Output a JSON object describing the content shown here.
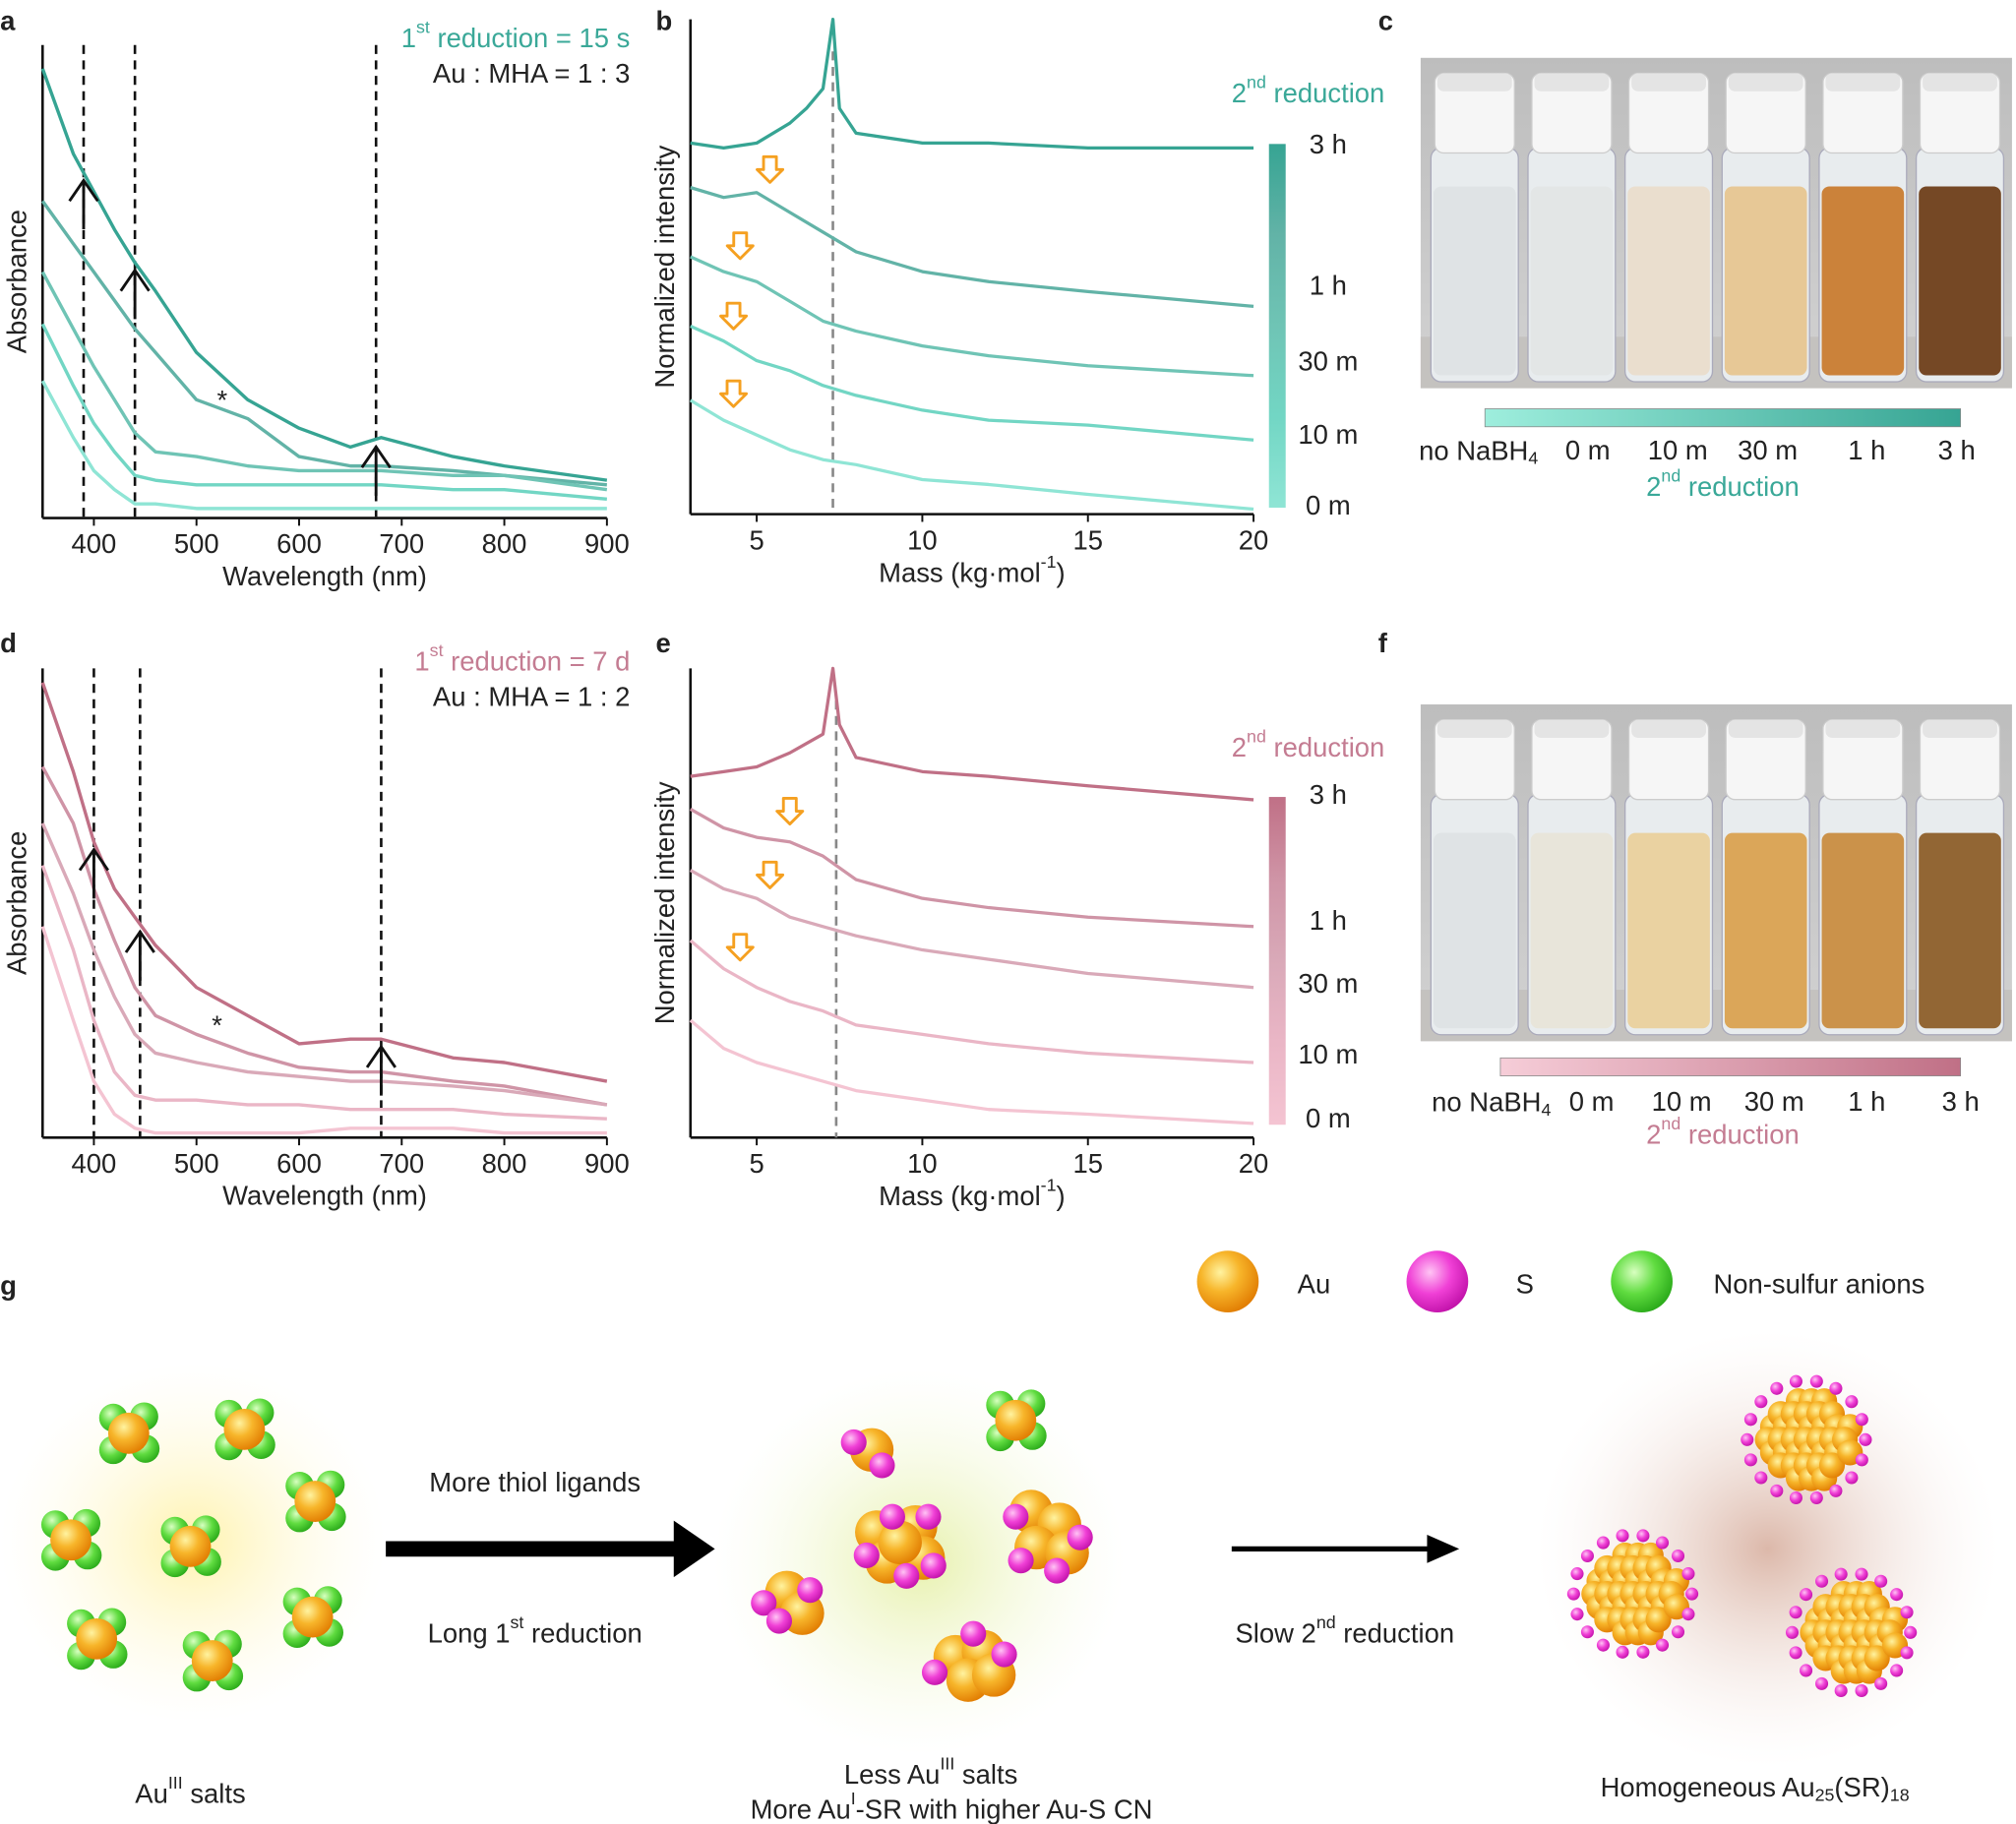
{
  "chart_data": [
    {
      "type": "line",
      "panel": "a",
      "y_label": "Absorbance",
      "x_label": "Wavelength (nm)",
      "xlim": [
        350,
        900
      ],
      "ylim": [
        0,
        100
      ],
      "xticks": [
        400,
        500,
        600,
        700,
        800,
        900
      ],
      "x": [
        350,
        380,
        400,
        420,
        440,
        460,
        500,
        550,
        600,
        650,
        680,
        750,
        800,
        900
      ],
      "series": [
        {
          "color": "#36a493",
          "values": [
            95,
            77,
            69,
            61,
            54,
            48,
            35,
            25,
            19,
            15,
            17,
            13,
            11,
            8
          ]
        },
        {
          "color": "#62b3a7",
          "values": [
            67,
            58,
            52,
            46,
            40,
            35,
            25,
            21,
            13,
            11,
            11,
            10,
            9,
            7
          ]
        },
        {
          "color": "#6fc4b5",
          "values": [
            52,
            40,
            32,
            25,
            18,
            14,
            13,
            11,
            10,
            10,
            10,
            9,
            9,
            6
          ]
        },
        {
          "color": "#72d6c4",
          "values": [
            41,
            28,
            20,
            14,
            9,
            8,
            7,
            7,
            7,
            7,
            7,
            6,
            6,
            4
          ]
        },
        {
          "color": "#8fe5d5",
          "values": [
            29,
            17,
            10,
            6,
            3,
            3,
            2,
            2,
            2,
            2,
            2,
            2,
            2,
            2
          ]
        }
      ],
      "dashed_x": [
        390,
        440,
        675
      ],
      "annotation": [
        [
          {
            "t": "1"
          },
          {
            "sup": "st"
          },
          {
            "t": " reduction = 15 s"
          }
        ],
        "Au : MHA = 1 : 3"
      ],
      "annotation_color": "#3aa898",
      "star": {
        "text": "*",
        "x": 525,
        "y": 25
      }
    },
    {
      "type": "spectra",
      "panel": "b",
      "y_label": "Normalized intensity",
      "x_label": [
        {
          "t": "Mass (kg·mol"
        },
        {
          "sup": "-1"
        },
        {
          "t": ")"
        }
      ],
      "xlim": [
        3,
        20
      ],
      "ylim": [
        0,
        100
      ],
      "xticks": [
        5,
        10,
        15,
        20
      ],
      "series": [
        {
          "color": "#36a493",
          "x": [
            3,
            4,
            5,
            6,
            6.5,
            7,
            7.3,
            7.5,
            8,
            10,
            12,
            15,
            20
          ],
          "values": [
            75,
            74,
            75,
            79,
            82,
            86,
            100,
            82,
            77,
            75,
            75,
            74,
            74
          ]
        },
        {
          "color": "#62b3a7",
          "x": [
            3,
            4,
            5,
            6,
            7,
            8,
            10,
            12,
            15,
            20
          ],
          "values": [
            66,
            64,
            65,
            61,
            57,
            53,
            49,
            47,
            45,
            42
          ]
        },
        {
          "color": "#6fc4b5",
          "x": [
            3,
            4,
            5,
            6,
            7,
            8,
            10,
            12,
            15,
            20
          ],
          "values": [
            52,
            49,
            47,
            43,
            39,
            37,
            34,
            32,
            30,
            28
          ]
        },
        {
          "color": "#72d6c4",
          "x": [
            3,
            4,
            5,
            6,
            7,
            8,
            10,
            12,
            15,
            20
          ],
          "values": [
            38,
            35,
            31,
            29,
            26,
            24,
            21,
            19,
            18,
            15
          ]
        },
        {
          "color": "#8fe5d5",
          "x": [
            3,
            4,
            5,
            6,
            7,
            8,
            10,
            12,
            15,
            20
          ],
          "values": [
            23,
            19,
            16,
            13,
            11,
            10,
            7,
            6,
            4,
            1
          ]
        }
      ],
      "dashed_x": [
        7.3
      ],
      "arrows": [
        {
          "series": 1,
          "x": 5.4
        },
        {
          "series": 2,
          "x": 4.5
        },
        {
          "series": 3,
          "x": 4.3
        },
        {
          "series": 4,
          "x": 4.3
        }
      ],
      "annotation": [
        [
          {
            "t": "2"
          },
          {
            "sup": "nd"
          },
          {
            "t": " reduction"
          }
        ]
      ],
      "annotation_color": "#3aa898",
      "colorbar_labels": [
        "3 h",
        "1 h",
        "30 m",
        "10 m",
        "0 m"
      ]
    },
    {
      "type": "line",
      "panel": "d",
      "y_label": "Absorbance",
      "x_label": "Wavelength (nm)",
      "xlim": [
        350,
        900
      ],
      "ylim": [
        0,
        100
      ],
      "xticks": [
        400,
        500,
        600,
        700,
        800,
        900
      ],
      "x": [
        350,
        380,
        400,
        420,
        440,
        460,
        500,
        550,
        600,
        650,
        680,
        750,
        800,
        900
      ],
      "series": [
        {
          "color": "#c07086",
          "values": [
            97,
            78,
            63,
            53,
            47,
            41,
            32,
            26,
            20,
            21,
            21,
            17,
            16,
            12
          ]
        },
        {
          "color": "#cf94a6",
          "values": [
            79,
            67,
            53,
            42,
            32,
            26,
            22,
            18,
            15,
            14,
            14,
            12,
            11,
            7
          ]
        },
        {
          "color": "#d9a9b8",
          "values": [
            67,
            52,
            40,
            30,
            22,
            18,
            16,
            14,
            13,
            12,
            12,
            11,
            10,
            7
          ]
        },
        {
          "color": "#eab6c6",
          "values": [
            58,
            40,
            25,
            14,
            9,
            8,
            8,
            7,
            7,
            6,
            6,
            6,
            5,
            4
          ]
        },
        {
          "color": "#f4c4d2",
          "values": [
            45,
            25,
            12,
            5,
            2,
            1,
            1,
            1,
            1,
            2,
            2,
            2,
            1,
            1
          ]
        }
      ],
      "dashed_x": [
        400,
        445,
        680
      ],
      "annotation": [
        [
          {
            "t": "1"
          },
          {
            "sup": "st"
          },
          {
            "t": " reduction = 7 d"
          }
        ],
        "Au : MHA = 1 : 2"
      ],
      "annotation_color": "#c47c92",
      "star": {
        "text": "*",
        "x": 520,
        "y": 24
      }
    },
    {
      "type": "spectra",
      "panel": "e",
      "y_label": "Normalized intensity",
      "x_label": [
        {
          "t": "Mass (kg·mol"
        },
        {
          "sup": "-1"
        },
        {
          "t": ")"
        }
      ],
      "xlim": [
        3,
        20
      ],
      "ylim": [
        0,
        100
      ],
      "xticks": [
        5,
        10,
        15,
        20
      ],
      "series": [
        {
          "color": "#c07086",
          "x": [
            3,
            4,
            5,
            6,
            7,
            7.3,
            7.5,
            8,
            10,
            12,
            15,
            20
          ],
          "values": [
            77,
            78,
            79,
            82,
            86,
            100,
            88,
            81,
            78,
            77,
            75,
            72
          ]
        },
        {
          "color": "#cf94a6",
          "x": [
            3,
            4,
            5,
            6,
            7,
            8,
            10,
            12,
            15,
            20
          ],
          "values": [
            70,
            66,
            64,
            63,
            60,
            55,
            51,
            49,
            47,
            45
          ]
        },
        {
          "color": "#d9a9b8",
          "x": [
            3,
            4,
            5,
            6,
            7,
            8,
            10,
            12,
            15,
            20
          ],
          "values": [
            57,
            53,
            51,
            47,
            45,
            43,
            40,
            38,
            35,
            32
          ]
        },
        {
          "color": "#eab6c6",
          "x": [
            3,
            4,
            5,
            6,
            7,
            8,
            10,
            12,
            15,
            20
          ],
          "values": [
            42,
            36,
            32,
            29,
            27,
            24,
            22,
            20,
            18,
            16
          ]
        },
        {
          "color": "#f4c4d2",
          "x": [
            3,
            4,
            5,
            6,
            7,
            8,
            10,
            12,
            15,
            20
          ],
          "values": [
            25,
            19,
            16,
            14,
            12,
            10,
            8,
            6,
            5,
            3
          ]
        }
      ],
      "dashed_x": [
        7.4
      ],
      "arrows": [
        {
          "series": 1,
          "x": 6.0
        },
        {
          "series": 2,
          "x": 5.4
        },
        {
          "series": 3,
          "x": 4.5
        }
      ],
      "annotation": [
        [
          {
            "t": "2"
          },
          {
            "sup": "nd"
          },
          {
            "t": " reduction"
          }
        ]
      ],
      "annotation_color": "#c47c92",
      "colorbar_labels": [
        "3 h",
        "1 h",
        "30 m",
        "10 m",
        "0 m"
      ]
    }
  ],
  "photos": [
    {
      "panel": "c",
      "vial_colors": [
        "#dde2e4",
        "#e2e5e5",
        "#e9dccb",
        "#e6c48e",
        "#c8782a",
        "#6a3a14"
      ],
      "bar_colors": [
        "#9eeedd",
        "#36a493"
      ],
      "labels": [
        [
          {
            "t": "no NaBH"
          },
          {
            "sub": "4"
          }
        ],
        "0 m",
        "10 m",
        "30 m",
        "1 h",
        "3 h"
      ],
      "caption": [
        {
          "t": "2"
        },
        {
          "sup": "nd"
        },
        {
          "t": " reduction"
        }
      ],
      "caption_color": "#3aa898"
    },
    {
      "panel": "f",
      "vial_colors": [
        "#dde2e4",
        "#e7e4d8",
        "#e9cf9a",
        "#d9a04c",
        "#c88a3c",
        "#8a5a24"
      ],
      "bar_colors": [
        "#f6cdd8",
        "#c07086"
      ],
      "labels": [
        [
          {
            "t": "no NaBH"
          },
          {
            "sub": "4"
          }
        ],
        "0 m",
        "10 m",
        "30 m",
        "1 h",
        "3 h"
      ],
      "caption": [
        {
          "t": "2"
        },
        {
          "sup": "nd"
        },
        {
          "t": " reduction"
        }
      ],
      "caption_color": "#c47c92"
    }
  ],
  "schematic": {
    "panel": "g",
    "legend": [
      "Au",
      "S",
      "Non-sulfur anions"
    ],
    "step1_top": "More thiol ligands",
    "step1_bottom": [
      {
        "t": "Long 1"
      },
      {
        "sup": "st"
      },
      {
        "t": " reduction"
      }
    ],
    "step2_bottom": [
      {
        "t": "Slow 2"
      },
      {
        "sup": "nd"
      },
      {
        "t": " reduction"
      }
    ],
    "stage1": [
      {
        "t": "Au"
      },
      {
        "sup": "III"
      },
      {
        "t": " salts"
      }
    ],
    "stage2_line1": [
      {
        "t": "Less Au"
      },
      {
        "sup": "III"
      },
      {
        "t": " salts"
      }
    ],
    "stage2_line2": [
      {
        "t": "More Au"
      },
      {
        "sup": "I"
      },
      {
        "t": "-SR with higher Au-S CN"
      }
    ],
    "stage3": [
      {
        "t": "Homogeneous Au"
      },
      {
        "sub": "25"
      },
      {
        "t": "(SR)"
      },
      {
        "sub": "18"
      }
    ]
  }
}
